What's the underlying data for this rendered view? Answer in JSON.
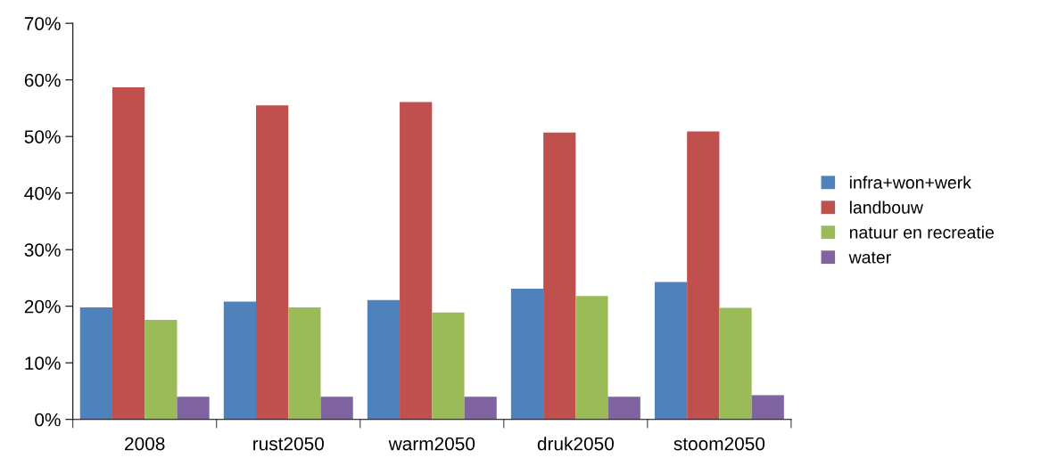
{
  "chart_data": {
    "type": "bar",
    "categories": [
      "2008",
      "rust2050",
      "warm2050",
      "druk2050",
      "stoom2050"
    ],
    "series": [
      {
        "name": "infra+won+werk",
        "color": "#4f81bd",
        "values": [
          19.8,
          20.8,
          21.1,
          23.1,
          24.3
        ]
      },
      {
        "name": "landbouw",
        "color": "#c0504d",
        "values": [
          58.7,
          55.5,
          56.1,
          50.7,
          50.9
        ]
      },
      {
        "name": "natuur en recreatie",
        "color": "#9bbb59",
        "values": [
          17.6,
          19.8,
          18.9,
          21.8,
          19.7
        ]
      },
      {
        "name": "water",
        "color": "#8064a2",
        "values": [
          4.0,
          4.0,
          4.0,
          4.0,
          4.3
        ]
      }
    ],
    "ylim": [
      0,
      70
    ],
    "yticks": [
      {
        "value": 0,
        "label": "0%"
      },
      {
        "value": 10,
        "label": "10%"
      },
      {
        "value": 20,
        "label": "20%"
      },
      {
        "value": 30,
        "label": "30%"
      },
      {
        "value": 40,
        "label": "40%"
      },
      {
        "value": 50,
        "label": "50%"
      },
      {
        "value": 60,
        "label": "60%"
      },
      {
        "value": 70,
        "label": "70%"
      }
    ],
    "grid": false,
    "legend": "right"
  }
}
